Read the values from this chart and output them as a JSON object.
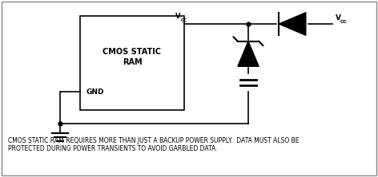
{
  "background_color": "#ffffff",
  "border_color": "#aaaaaa",
  "line_color": "#000000",
  "text_color": "#000000",
  "caption": "CMOS STATIC RAM REQUIRES MORE THAN JUST A BACKUP POWER SUPPLY.  DATA MUST ALSO BE\nPROTECTED DURING POWER TRANSIENTS TO AVOID GARBLED DATA.",
  "ram_label1": "CMOS STATIC",
  "ram_label2": "RAM",
  "gnd_label": "GND",
  "figsize": [
    4.72,
    2.22
  ],
  "dpi": 100,
  "xlim": [
    0,
    472
  ],
  "ylim": [
    0,
    222
  ]
}
